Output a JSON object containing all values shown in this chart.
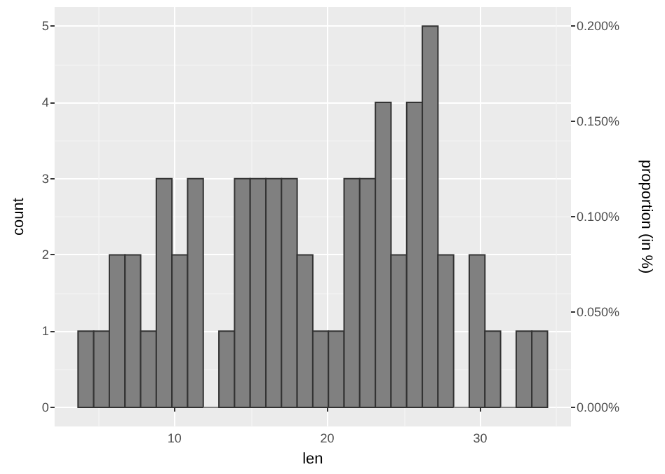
{
  "chart_data": {
    "type": "histogram",
    "xlabel": "len",
    "ylabel": "count",
    "y2label": "proportion (in %)",
    "bins": [
      3.688,
      4.712,
      5.736,
      6.76,
      7.784,
      8.809,
      9.833,
      10.857,
      11.881,
      12.905,
      13.929,
      14.953,
      15.978,
      17.002,
      18.026,
      19.05,
      20.074,
      21.098,
      22.122,
      23.147,
      24.171,
      25.195,
      26.219,
      27.243,
      28.267,
      29.291,
      30.316,
      31.34,
      32.364,
      33.388,
      34.412
    ],
    "values": [
      1,
      1,
      2,
      2,
      1,
      3,
      2,
      3,
      0,
      1,
      3,
      3,
      3,
      3,
      2,
      1,
      1,
      3,
      3,
      4,
      2,
      4,
      5,
      2,
      0,
      2,
      1,
      0,
      1,
      1
    ],
    "color": "#808080",
    "xlim": [
      2.15,
      35.95
    ],
    "xticks": [
      10,
      20,
      30
    ],
    "ylim": [
      -0.25,
      5.25
    ],
    "yticks": [
      0,
      1,
      2,
      3,
      4,
      5
    ],
    "y2lim": [
      -0.01,
      0.21
    ],
    "y2ticks": [
      {
        "value": 0,
        "label": "0.000%"
      },
      {
        "value": 0.05,
        "label": "0.050%"
      },
      {
        "value": 0.1,
        "label": "0.100%"
      },
      {
        "value": 0.15,
        "label": "0.150%"
      },
      {
        "value": 0.2,
        "label": "0.200%"
      }
    ],
    "grid": true
  }
}
